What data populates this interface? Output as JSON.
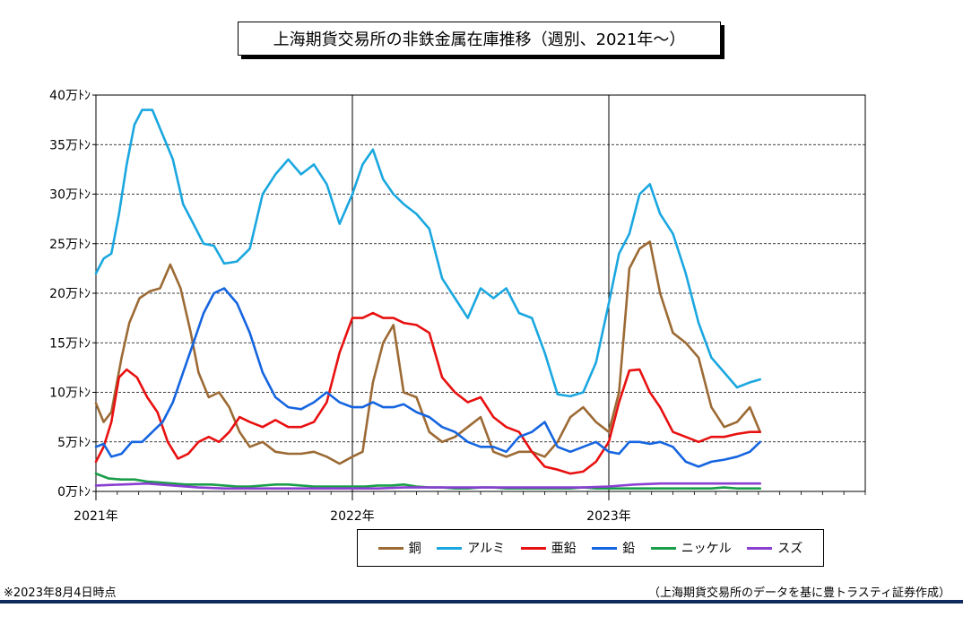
{
  "chart_data": {
    "type": "line",
    "title": "上海期貨交易所の非鉄金属在庫推移（週別、2021年〜）",
    "xlabel": "",
    "ylabel": "",
    "x_ticks": [
      "2021年",
      "2022年",
      "2023年"
    ],
    "x_range": [
      2021.0,
      2024.0
    ],
    "ylim": [
      0,
      40
    ],
    "y_ticks": [
      "0万ﾄﾝ",
      "5万ﾄﾝ",
      "10万ﾄﾝ",
      "15万ﾄﾝ",
      "20万ﾄﾝ",
      "25万ﾄﾝ",
      "30万ﾄﾝ",
      "35万ﾄﾝ",
      "40万ﾄﾝ"
    ],
    "y_unit": "万トン",
    "grid": "horizontal dashed, vertical year lines",
    "legend_position": "bottom",
    "series": [
      {
        "name": "銅",
        "color": "#9c6a34",
        "x": [
          2021.0,
          2021.03,
          2021.06,
          2021.1,
          2021.13,
          2021.17,
          2021.21,
          2021.25,
          2021.29,
          2021.33,
          2021.37,
          2021.4,
          2021.44,
          2021.48,
          2021.52,
          2021.56,
          2021.6,
          2021.65,
          2021.7,
          2021.75,
          2021.8,
          2021.85,
          2021.9,
          2021.95,
          2022.0,
          2022.04,
          2022.08,
          2022.12,
          2022.16,
          2022.2,
          2022.25,
          2022.3,
          2022.35,
          2022.4,
          2022.45,
          2022.5,
          2022.55,
          2022.6,
          2022.65,
          2022.7,
          2022.75,
          2022.8,
          2022.85,
          2022.9,
          2022.95,
          2023.0,
          2023.04,
          2023.08,
          2023.12,
          2023.16,
          2023.2,
          2023.25,
          2023.3,
          2023.35,
          2023.4,
          2023.45,
          2023.5,
          2023.55,
          2023.59
        ],
        "values": [
          8.9,
          7.0,
          8.0,
          13.5,
          17.0,
          19.5,
          20.2,
          20.5,
          22.9,
          20.5,
          16.0,
          12.0,
          9.5,
          10.0,
          8.5,
          6.0,
          4.5,
          5.0,
          4.0,
          3.8,
          3.8,
          4.0,
          3.5,
          2.8,
          3.5,
          4.0,
          11.0,
          15.0,
          16.8,
          10.0,
          9.5,
          6.0,
          5.0,
          5.5,
          6.5,
          7.5,
          4.0,
          3.5,
          4.0,
          4.0,
          3.5,
          5.0,
          7.5,
          8.5,
          7.0,
          6.0,
          10.0,
          22.5,
          24.5,
          25.2,
          20.0,
          16.0,
          15.0,
          13.5,
          8.5,
          6.5,
          7.0,
          8.5,
          6.0
        ]
      },
      {
        "name": "アルミ",
        "color": "#1aa7e0",
        "x": [
          2021.0,
          2021.03,
          2021.06,
          2021.09,
          2021.12,
          2021.15,
          2021.18,
          2021.22,
          2021.26,
          2021.3,
          2021.34,
          2021.38,
          2021.42,
          2021.46,
          2021.5,
          2021.55,
          2021.6,
          2021.65,
          2021.7,
          2021.75,
          2021.8,
          2021.85,
          2021.9,
          2021.95,
          2022.0,
          2022.04,
          2022.08,
          2022.12,
          2022.16,
          2022.2,
          2022.25,
          2022.3,
          2022.35,
          2022.4,
          2022.45,
          2022.5,
          2022.55,
          2022.6,
          2022.65,
          2022.7,
          2022.75,
          2022.8,
          2022.85,
          2022.9,
          2022.95,
          2023.0,
          2023.04,
          2023.08,
          2023.12,
          2023.16,
          2023.2,
          2023.25,
          2023.3,
          2023.35,
          2023.4,
          2023.45,
          2023.5,
          2023.55,
          2023.59
        ],
        "values": [
          22.0,
          23.5,
          24.0,
          28.0,
          33.0,
          37.0,
          38.5,
          38.5,
          36.0,
          33.5,
          29.0,
          27.0,
          25.0,
          24.8,
          23.0,
          23.2,
          24.5,
          30.0,
          32.0,
          33.5,
          32.0,
          33.0,
          31.0,
          27.0,
          30.0,
          33.0,
          34.5,
          31.5,
          30.0,
          29.0,
          28.0,
          26.5,
          21.5,
          19.5,
          17.5,
          20.5,
          19.5,
          20.5,
          18.0,
          17.5,
          14.0,
          9.8,
          9.6,
          10.0,
          13.0,
          19.0,
          24.0,
          26.0,
          30.0,
          31.0,
          28.0,
          26.0,
          22.0,
          17.0,
          13.5,
          12.0,
          10.5,
          11.0,
          11.3
        ]
      },
      {
        "name": "亜鉛",
        "color": "#e81010",
        "x": [
          2021.0,
          2021.03,
          2021.06,
          2021.09,
          2021.12,
          2021.16,
          2021.2,
          2021.24,
          2021.28,
          2021.32,
          2021.36,
          2021.4,
          2021.44,
          2021.48,
          2021.52,
          2021.56,
          2021.6,
          2021.65,
          2021.7,
          2021.75,
          2021.8,
          2021.85,
          2021.9,
          2021.95,
          2022.0,
          2022.04,
          2022.08,
          2022.12,
          2022.16,
          2022.2,
          2022.25,
          2022.3,
          2022.35,
          2022.4,
          2022.45,
          2022.5,
          2022.55,
          2022.6,
          2022.65,
          2022.7,
          2022.75,
          2022.8,
          2022.85,
          2022.9,
          2022.95,
          2023.0,
          2023.04,
          2023.08,
          2023.12,
          2023.16,
          2023.2,
          2023.25,
          2023.3,
          2023.35,
          2023.4,
          2023.45,
          2023.5,
          2023.55,
          2023.59
        ],
        "values": [
          3.0,
          4.5,
          7.0,
          11.5,
          12.3,
          11.5,
          9.5,
          8.0,
          5.0,
          3.3,
          3.8,
          5.0,
          5.5,
          5.0,
          6.0,
          7.5,
          7.0,
          6.5,
          7.2,
          6.5,
          6.5,
          7.0,
          9.0,
          14.0,
          17.5,
          17.5,
          18.0,
          17.5,
          17.5,
          17.0,
          16.8,
          16.0,
          11.5,
          10.0,
          9.0,
          9.5,
          7.5,
          6.5,
          6.0,
          4.0,
          2.5,
          2.2,
          1.8,
          2.0,
          3.0,
          5.0,
          9.0,
          12.2,
          12.3,
          10.0,
          8.5,
          6.0,
          5.5,
          5.0,
          5.5,
          5.5,
          5.8,
          6.0,
          6.0
        ]
      },
      {
        "name": "鉛",
        "color": "#1565e0",
        "x": [
          2021.0,
          2021.03,
          2021.06,
          2021.1,
          2021.14,
          2021.18,
          2021.22,
          2021.26,
          2021.3,
          2021.34,
          2021.38,
          2021.42,
          2021.46,
          2021.5,
          2021.55,
          2021.6,
          2021.65,
          2021.7,
          2021.75,
          2021.8,
          2021.85,
          2021.9,
          2021.95,
          2022.0,
          2022.04,
          2022.08,
          2022.12,
          2022.16,
          2022.2,
          2022.25,
          2022.3,
          2022.35,
          2022.4,
          2022.45,
          2022.5,
          2022.55,
          2022.6,
          2022.65,
          2022.7,
          2022.75,
          2022.8,
          2022.85,
          2022.9,
          2022.95,
          2023.0,
          2023.04,
          2023.08,
          2023.12,
          2023.16,
          2023.2,
          2023.25,
          2023.3,
          2023.35,
          2023.4,
          2023.45,
          2023.5,
          2023.55,
          2023.59
        ],
        "values": [
          4.5,
          4.8,
          3.5,
          3.8,
          5.0,
          5.0,
          6.0,
          7.0,
          9.0,
          12.0,
          15.0,
          18.0,
          20.0,
          20.5,
          19.0,
          16.0,
          12.0,
          9.5,
          8.5,
          8.3,
          9.0,
          10.0,
          9.0,
          8.5,
          8.5,
          9.0,
          8.5,
          8.5,
          8.8,
          8.0,
          7.5,
          6.5,
          6.0,
          5.0,
          4.5,
          4.5,
          4.0,
          5.5,
          6.0,
          7.0,
          4.5,
          4.0,
          4.5,
          5.0,
          4.0,
          3.8,
          5.0,
          5.0,
          4.8,
          5.0,
          4.5,
          3.0,
          2.5,
          3.0,
          3.2,
          3.5,
          4.0,
          5.0
        ]
      },
      {
        "name": "ニッケル",
        "color": "#1a9e4a",
        "x": [
          2021.0,
          2021.05,
          2021.1,
          2021.15,
          2021.2,
          2021.25,
          2021.3,
          2021.35,
          2021.4,
          2021.45,
          2021.5,
          2021.55,
          2021.6,
          2021.65,
          2021.7,
          2021.75,
          2021.8,
          2021.85,
          2021.9,
          2021.95,
          2022.0,
          2022.05,
          2022.1,
          2022.15,
          2022.2,
          2022.25,
          2022.3,
          2022.35,
          2022.4,
          2022.45,
          2022.5,
          2022.55,
          2022.6,
          2022.65,
          2022.7,
          2022.75,
          2022.8,
          2022.85,
          2022.9,
          2022.95,
          2023.0,
          2023.05,
          2023.1,
          2023.15,
          2023.2,
          2023.25,
          2023.3,
          2023.35,
          2023.4,
          2023.45,
          2023.5,
          2023.55,
          2023.59
        ],
        "values": [
          1.8,
          1.3,
          1.2,
          1.2,
          1.0,
          0.9,
          0.8,
          0.7,
          0.7,
          0.7,
          0.6,
          0.5,
          0.5,
          0.6,
          0.7,
          0.7,
          0.6,
          0.5,
          0.5,
          0.5,
          0.5,
          0.5,
          0.6,
          0.6,
          0.7,
          0.5,
          0.4,
          0.4,
          0.3,
          0.3,
          0.4,
          0.4,
          0.3,
          0.3,
          0.3,
          0.3,
          0.3,
          0.3,
          0.4,
          0.3,
          0.3,
          0.3,
          0.3,
          0.3,
          0.3,
          0.3,
          0.3,
          0.3,
          0.3,
          0.4,
          0.3,
          0.3,
          0.3
        ]
      },
      {
        "name": "スズ",
        "color": "#8a3fd1",
        "x": [
          2021.0,
          2021.1,
          2021.2,
          2021.3,
          2021.4,
          2021.5,
          2021.6,
          2021.7,
          2021.8,
          2021.9,
          2022.0,
          2022.1,
          2022.2,
          2022.3,
          2022.4,
          2022.5,
          2022.6,
          2022.7,
          2022.8,
          2022.9,
          2023.0,
          2023.1,
          2023.2,
          2023.3,
          2023.4,
          2023.5,
          2023.59
        ],
        "values": [
          0.6,
          0.7,
          0.8,
          0.6,
          0.4,
          0.3,
          0.3,
          0.3,
          0.3,
          0.3,
          0.3,
          0.3,
          0.4,
          0.4,
          0.4,
          0.4,
          0.4,
          0.4,
          0.4,
          0.4,
          0.5,
          0.7,
          0.8,
          0.8,
          0.8,
          0.8,
          0.8
        ]
      }
    ]
  },
  "title": "上海期貨交易所の非鉄金属在庫推移（週別、2021年〜）",
  "note": "※2023年8月4日時点",
  "source": "（上海期貨交易所のデータを基に豊トラスティ証券作成）"
}
